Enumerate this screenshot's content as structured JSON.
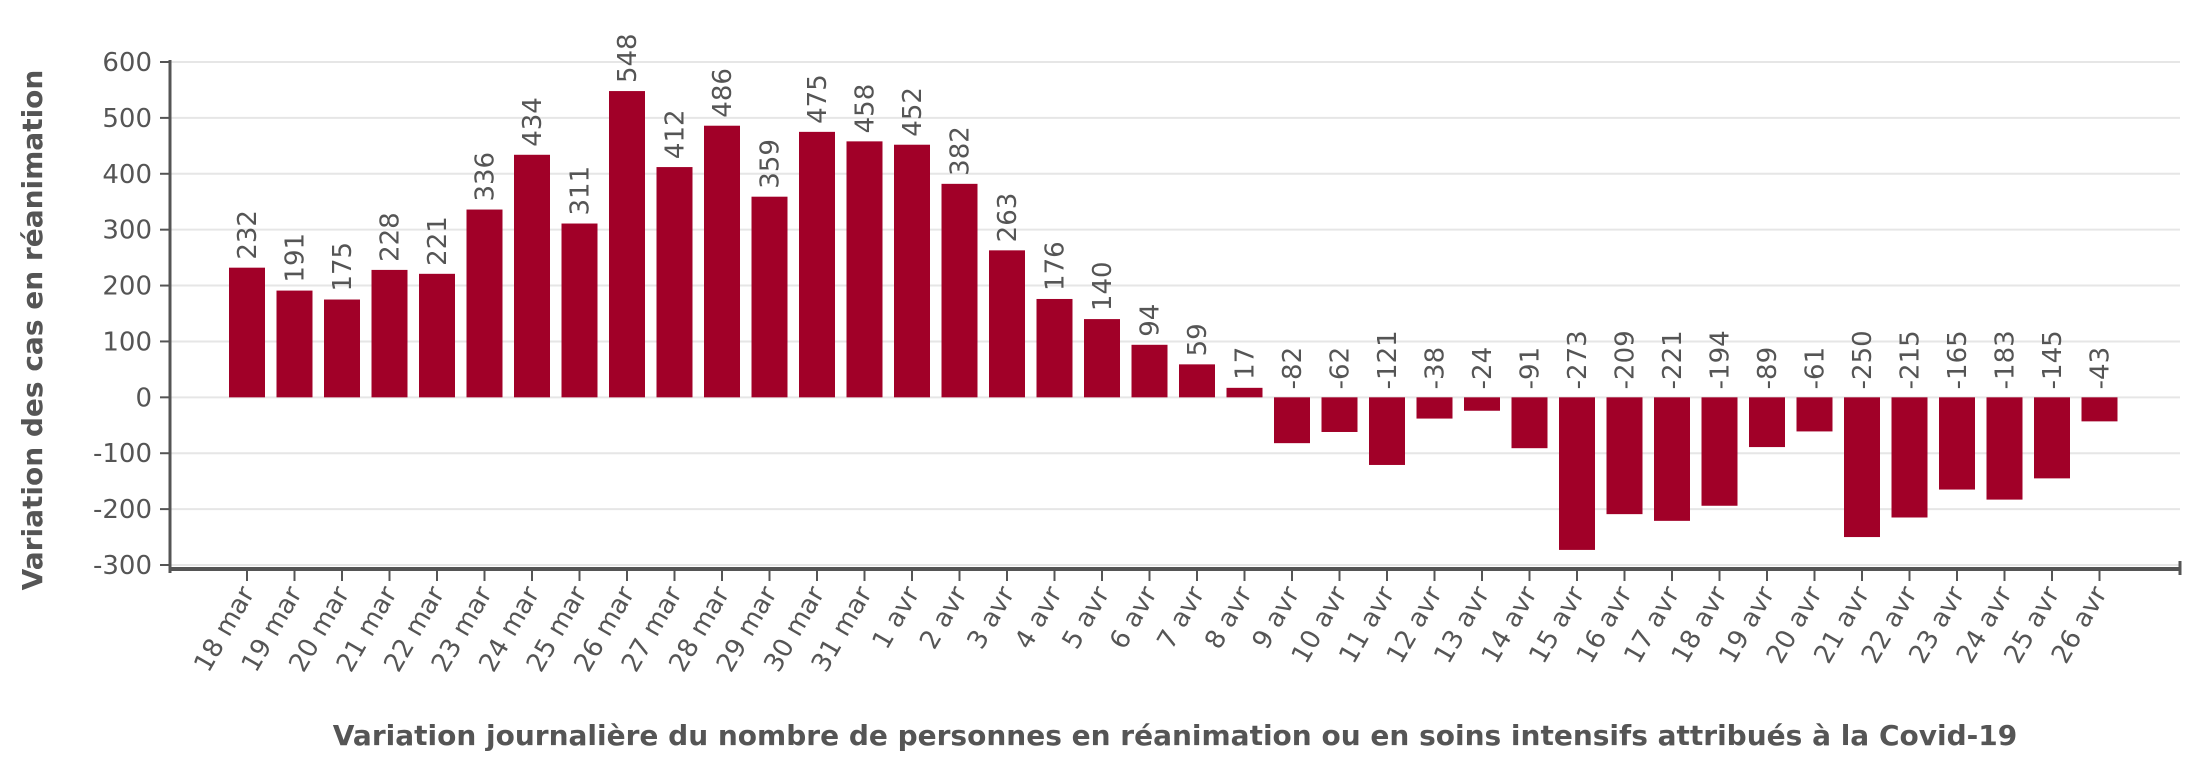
{
  "chart_data": {
    "type": "bar",
    "title": "",
    "xlabel": "Variation journalière du nombre de personnes en réanimation ou en soins intensifs attribués à la Covid-19",
    "ylabel": "Variation des cas en réanimation",
    "ylim": [
      -300,
      600
    ],
    "yticks": [
      600,
      500,
      400,
      300,
      200,
      100,
      0,
      -100,
      -200,
      -300
    ],
    "grid": true,
    "legend": "none",
    "bar_color": "#a10028",
    "categories": [
      "18 mar",
      "19 mar",
      "20 mar",
      "21 mar",
      "22 mar",
      "23 mar",
      "24 mar",
      "25 mar",
      "26 mar",
      "27 mar",
      "28 mar",
      "29 mar",
      "30 mar",
      "31 mar",
      "1 avr",
      "2 avr",
      "3 avr",
      "4 avr",
      "5 avr",
      "6 avr",
      "7 avr",
      "8 avr",
      "9 avr",
      "10 avr",
      "11 avr",
      "12 avr",
      "13 avr",
      "14 avr",
      "15 avr",
      "16 avr",
      "17 avr",
      "18 avr",
      "19 avr",
      "20 avr",
      "21 avr",
      "22 avr",
      "23 avr",
      "24 avr",
      "25 avr",
      "26 avr"
    ],
    "values": [
      232,
      191,
      175,
      228,
      221,
      336,
      434,
      311,
      548,
      412,
      486,
      359,
      475,
      458,
      452,
      382,
      263,
      176,
      140,
      94,
      59,
      17,
      -82,
      -62,
      -121,
      -38,
      -24,
      -91,
      -273,
      -209,
      -221,
      -194,
      -89,
      -61,
      -250,
      -215,
      -165,
      -183,
      -145,
      -43
    ]
  }
}
